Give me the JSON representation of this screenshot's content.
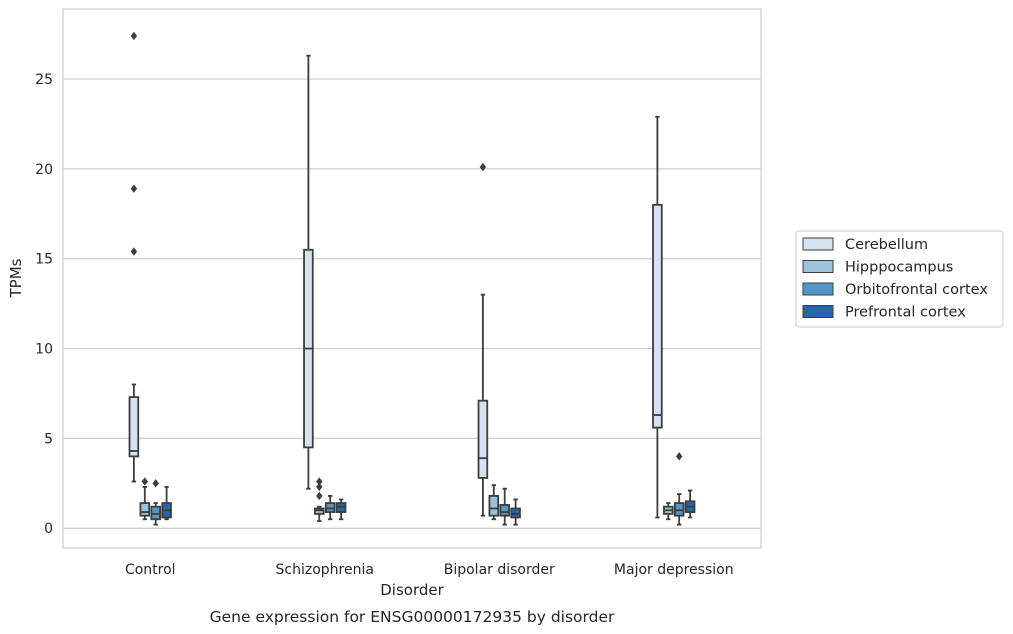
{
  "chart_data": {
    "type": "box",
    "caption": "Gene expression for ENSG00000172935 by disorder",
    "xlabel": "Disorder",
    "ylabel": "TPMs",
    "ylim": [
      -1.1,
      28.9
    ],
    "yticks": [
      0,
      5,
      10,
      15,
      20,
      25
    ],
    "grid": "horizontal",
    "legend_position": "right",
    "categories": [
      "Control",
      "Schizophrenia",
      "Bipolar disorder",
      "Major depression"
    ],
    "series": [
      {
        "name": "Cerebellum",
        "color": "#d4e3f2",
        "boxes": [
          {
            "whisker_low": 2.6,
            "q1": 4.0,
            "median": 4.3,
            "q3": 7.3,
            "whisker_high": 8.0,
            "outliers": [
              15.4,
              18.9,
              27.4
            ]
          },
          {
            "whisker_low": 2.2,
            "q1": 4.5,
            "median": 10.0,
            "q3": 15.5,
            "whisker_high": 26.3,
            "outliers": []
          },
          {
            "whisker_low": 0.7,
            "q1": 2.8,
            "median": 3.9,
            "q3": 7.1,
            "whisker_high": 13.0,
            "outliers": [
              20.1
            ]
          },
          {
            "whisker_low": 0.6,
            "q1": 5.6,
            "median": 6.3,
            "q3": 18.0,
            "whisker_high": 22.9,
            "outliers": []
          }
        ]
      },
      {
        "name": "Hipppocampus",
        "color": "#9ac3dc",
        "boxes": [
          {
            "whisker_low": 0.5,
            "q1": 0.7,
            "median": 0.9,
            "q3": 1.4,
            "whisker_high": 2.3,
            "outliers": [
              2.6
            ]
          },
          {
            "whisker_low": 0.4,
            "q1": 0.8,
            "median": 1.0,
            "q3": 1.1,
            "whisker_high": 1.2,
            "outliers": [
              1.8,
              2.3,
              2.6
            ]
          },
          {
            "whisker_low": 0.5,
            "q1": 0.7,
            "median": 1.1,
            "q3": 1.8,
            "whisker_high": 2.4,
            "outliers": []
          },
          {
            "whisker_low": 0.5,
            "q1": 0.8,
            "median": 1.0,
            "q3": 1.2,
            "whisker_high": 1.4,
            "outliers": []
          }
        ]
      },
      {
        "name": "Orbitofrontal cortex",
        "color": "#5496c6",
        "boxes": [
          {
            "whisker_low": 0.2,
            "q1": 0.5,
            "median": 0.8,
            "q3": 1.2,
            "whisker_high": 1.4,
            "outliers": [
              2.5
            ]
          },
          {
            "whisker_low": 0.5,
            "q1": 0.9,
            "median": 1.1,
            "q3": 1.4,
            "whisker_high": 1.8,
            "outliers": []
          },
          {
            "whisker_low": 0.2,
            "q1": 0.7,
            "median": 0.9,
            "q3": 1.3,
            "whisker_high": 2.2,
            "outliers": []
          },
          {
            "whisker_low": 0.2,
            "q1": 0.7,
            "median": 1.0,
            "q3": 1.4,
            "whisker_high": 1.9,
            "outliers": [
              4.0
            ]
          }
        ]
      },
      {
        "name": "Prefrontal cortex",
        "color": "#2565a8",
        "boxes": [
          {
            "whisker_low": 0.5,
            "q1": 0.6,
            "median": 1.0,
            "q3": 1.4,
            "whisker_high": 2.3,
            "outliers": []
          },
          {
            "whisker_low": 0.5,
            "q1": 0.9,
            "median": 1.2,
            "q3": 1.4,
            "whisker_high": 1.6,
            "outliers": []
          },
          {
            "whisker_low": 0.2,
            "q1": 0.6,
            "median": 0.8,
            "q3": 1.1,
            "whisker_high": 1.6,
            "outliers": []
          },
          {
            "whisker_low": 0.6,
            "q1": 0.9,
            "median": 1.2,
            "q3": 1.5,
            "whisker_high": 2.1,
            "outliers": []
          }
        ]
      }
    ]
  }
}
